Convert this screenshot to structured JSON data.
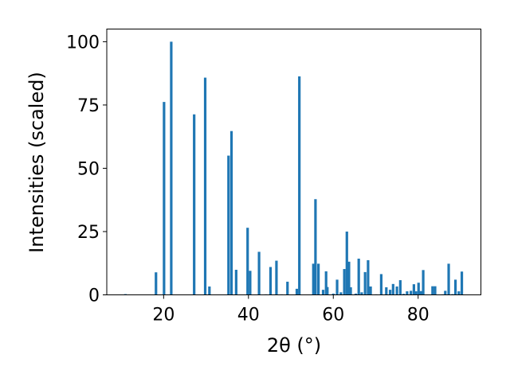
{
  "chart_data": {
    "type": "bar",
    "xlabel": "2θ (°)",
    "ylabel": "Intensities (scaled)",
    "xlim": [
      6.6,
      94.8
    ],
    "ylim": [
      0,
      105
    ],
    "xticks": [
      20,
      40,
      60,
      80
    ],
    "yticks": [
      0,
      25,
      50,
      75,
      100
    ],
    "bar_width": 0.6,
    "bar_color": "#1f77b4",
    "grid": false,
    "x": [
      11.0,
      18.2,
      20.1,
      21.8,
      27.2,
      29.8,
      30.8,
      35.3,
      36.0,
      37.1,
      39.8,
      40.4,
      42.5,
      44.1,
      45.2,
      46.6,
      47.8,
      49.2,
      51.4,
      52.0,
      55.3,
      55.8,
      56.5,
      57.6,
      58.3,
      58.6,
      60.0,
      60.9,
      61.8,
      62.6,
      63.2,
      63.7,
      64.1,
      65.3,
      66.0,
      66.7,
      67.5,
      68.2,
      68.8,
      70.1,
      71.3,
      72.5,
      73.4,
      74.1,
      75.0,
      75.8,
      76.6,
      77.4,
      78.3,
      79.0,
      79.5,
      80.1,
      80.6,
      81.2,
      83.4,
      84.0,
      85.8,
      86.4,
      87.2,
      88.1,
      88.8,
      89.6,
      90.3
    ],
    "values": [
      0.3,
      8.9,
      76.2,
      100.0,
      71.3,
      85.8,
      3.3,
      55.0,
      64.7,
      9.9,
      26.5,
      9.5,
      17.0,
      0.2,
      11.0,
      13.5,
      0.2,
      5.2,
      2.4,
      86.3,
      12.3,
      37.8,
      12.3,
      2.0,
      9.3,
      3.1,
      0.5,
      6.0,
      1.0,
      10.2,
      25.0,
      13.1,
      3.0,
      0.5,
      14.3,
      1.0,
      9.0,
      13.7,
      3.3,
      0.2,
      8.2,
      3.0,
      2.0,
      4.3,
      3.3,
      5.8,
      0.4,
      1.4,
      1.6,
      4.2,
      1.4,
      4.8,
      1.5,
      9.8,
      3.4,
      3.4,
      0.2,
      1.6,
      12.3,
      0.3,
      6.0,
      1.4,
      9.2
    ]
  }
}
